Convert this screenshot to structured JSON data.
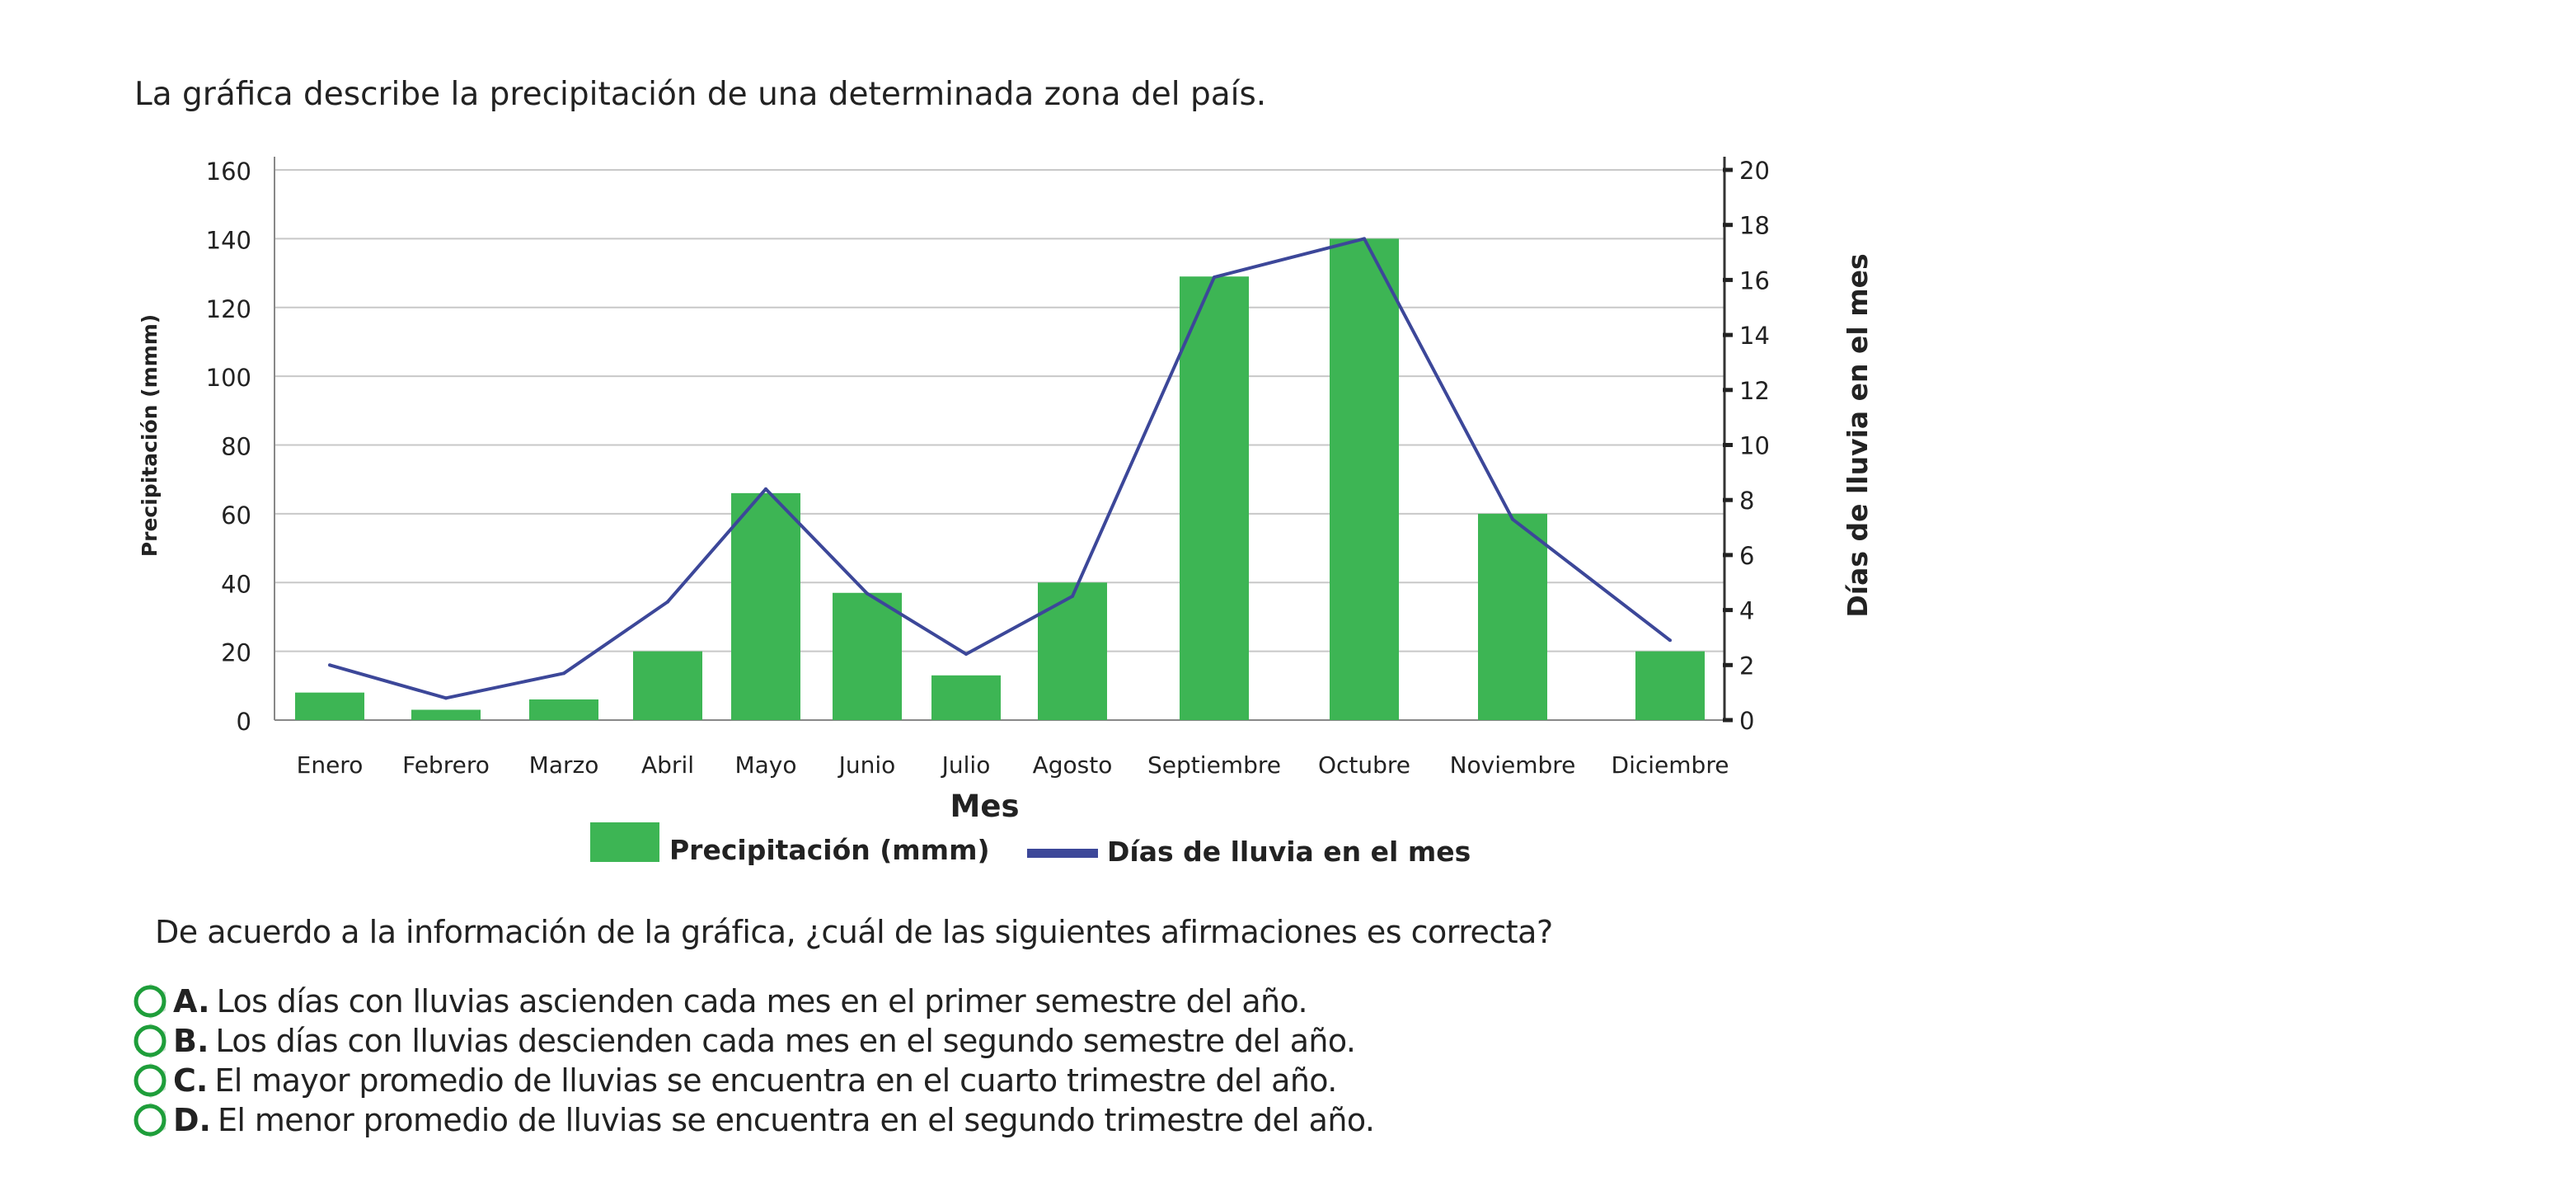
{
  "intro": "La gráfica describe la precipitación de una determinada zona del país.",
  "question": "De acuerdo a la información de la gráfica, ¿cuál de las siguientes afirmaciones es correcta?",
  "options": [
    {
      "letter": "A.",
      "text": "Los días con lluvias ascienden cada mes en el primer semestre del año."
    },
    {
      "letter": "B.",
      "text": "Los días con lluvias descienden cada mes en el segundo semestre del año."
    },
    {
      "letter": "C.",
      "text": "El mayor promedio de lluvias se encuentra en el cuarto trimestre del año."
    },
    {
      "letter": "D.",
      "text": "El menor promedio de lluvias se encuentra en el segundo trimestre del año."
    }
  ],
  "colors": {
    "bar": "#3db554",
    "line": "#3c4799",
    "radio": "#1e9e3a",
    "grid": "#c8c8c8"
  },
  "chart_data": {
    "type": "bar",
    "categories": [
      "Enero",
      "Febrero",
      "Marzo",
      "Abril",
      "Mayo",
      "Junio",
      "Julio",
      "Agosto",
      "Septiembre",
      "Octubre",
      "Noviembre",
      "Diciembre"
    ],
    "series": [
      {
        "name": "Precipitación (mmm)",
        "type": "bar",
        "axis": "left",
        "values": [
          8,
          3,
          6,
          20,
          66,
          37,
          13,
          40,
          129,
          140,
          60,
          20
        ]
      },
      {
        "name": "Días de lluvia en el mes",
        "type": "line",
        "axis": "right",
        "values": [
          2,
          0.8,
          1.7,
          4.3,
          8.4,
          4.6,
          2.4,
          4.5,
          16.1,
          17.5,
          7.3,
          2.9
        ]
      }
    ],
    "xlabel": "Mes",
    "ylabel": "Precipitación (mmm)",
    "y2label": "Días de lluvia en el mes",
    "ylim": [
      0,
      160
    ],
    "yticks": [
      "0",
      "20",
      "40",
      "60",
      "80",
      "100",
      "120",
      "140",
      "160"
    ],
    "y2ticks": [
      "0",
      "2",
      "4",
      "6",
      "8",
      "10",
      "12",
      "14",
      "16",
      "18",
      "20"
    ],
    "grid": true,
    "legend": "bottom"
  }
}
